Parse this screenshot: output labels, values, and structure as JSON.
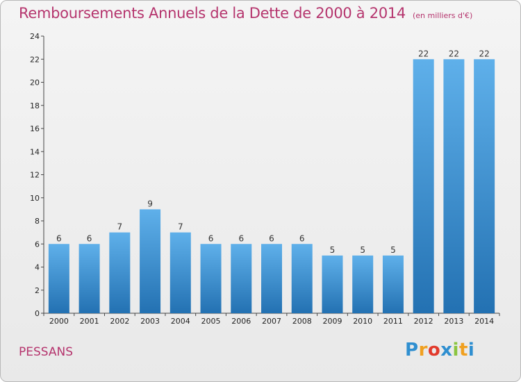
{
  "header": {
    "title": "Remboursements Annuels de la Dette de 2000 à 2014",
    "subtitle": "(en milliers d'€)"
  },
  "footer": {
    "commune": "PESSANS",
    "logo_letters": [
      "P",
      "r",
      "o",
      "x",
      "i",
      "t",
      "i"
    ],
    "logo_colors": [
      "#2f8fd0",
      "#f0a020",
      "#e23a2c",
      "#2f8fd0",
      "#8bc540",
      "#f0a020",
      "#2f8fd0"
    ]
  },
  "colors": {
    "accent": "#b5346d",
    "bar_top": "#5fb0ea",
    "bar_bottom": "#2371b2"
  },
  "chart_data": {
    "type": "bar",
    "categories": [
      "2000",
      "2001",
      "2002",
      "2003",
      "2004",
      "2005",
      "2006",
      "2007",
      "2008",
      "2009",
      "2010",
      "2011",
      "2012",
      "2013",
      "2014"
    ],
    "values": [
      6,
      6,
      7,
      9,
      7,
      6,
      6,
      6,
      6,
      5,
      5,
      5,
      22,
      22,
      22
    ],
    "data_labels": [
      "6",
      "6",
      "7",
      "9",
      "7",
      "6",
      "6",
      "6",
      "6",
      "5",
      "5",
      "5",
      "22",
      "22",
      "22"
    ],
    "ylim": [
      0,
      24
    ],
    "yticks": [
      0,
      2,
      4,
      6,
      8,
      10,
      12,
      14,
      16,
      18,
      20,
      22,
      24
    ],
    "xlabel": "",
    "ylabel": "",
    "grid": false
  }
}
